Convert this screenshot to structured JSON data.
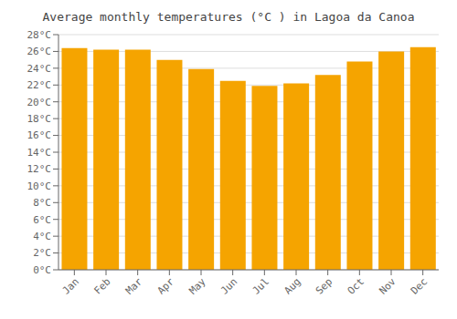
{
  "chart_data": {
    "type": "bar",
    "title": "Average monthly temperatures (°C ) in Lagoa da Canoa",
    "categories": [
      "Jan",
      "Feb",
      "Mar",
      "Apr",
      "May",
      "Jun",
      "Jul",
      "Aug",
      "Sep",
      "Oct",
      "Nov",
      "Dec"
    ],
    "values": [
      26.4,
      26.2,
      26.2,
      25.0,
      23.9,
      22.5,
      21.9,
      22.2,
      23.2,
      24.8,
      26.0,
      26.5
    ],
    "color": "#F5A400",
    "ylim": [
      0,
      28
    ],
    "yticks": [
      {
        "value": 0,
        "label": "0°C"
      },
      {
        "value": 2,
        "label": "2°C"
      },
      {
        "value": 4,
        "label": "4°C"
      },
      {
        "value": 6,
        "label": "6°C"
      },
      {
        "value": 8,
        "label": "8°C"
      },
      {
        "value": 10,
        "label": "10°C"
      },
      {
        "value": 12,
        "label": "12°C"
      },
      {
        "value": 14,
        "label": "14°C"
      },
      {
        "value": 16,
        "label": "16°C"
      },
      {
        "value": 18,
        "label": "18°C"
      },
      {
        "value": 20,
        "label": "20°C"
      },
      {
        "value": 22,
        "label": "22°C"
      },
      {
        "value": 24,
        "label": "24°C"
      },
      {
        "value": 26,
        "label": "26°C"
      },
      {
        "value": 28,
        "label": "28°C"
      }
    ],
    "grid": true
  }
}
